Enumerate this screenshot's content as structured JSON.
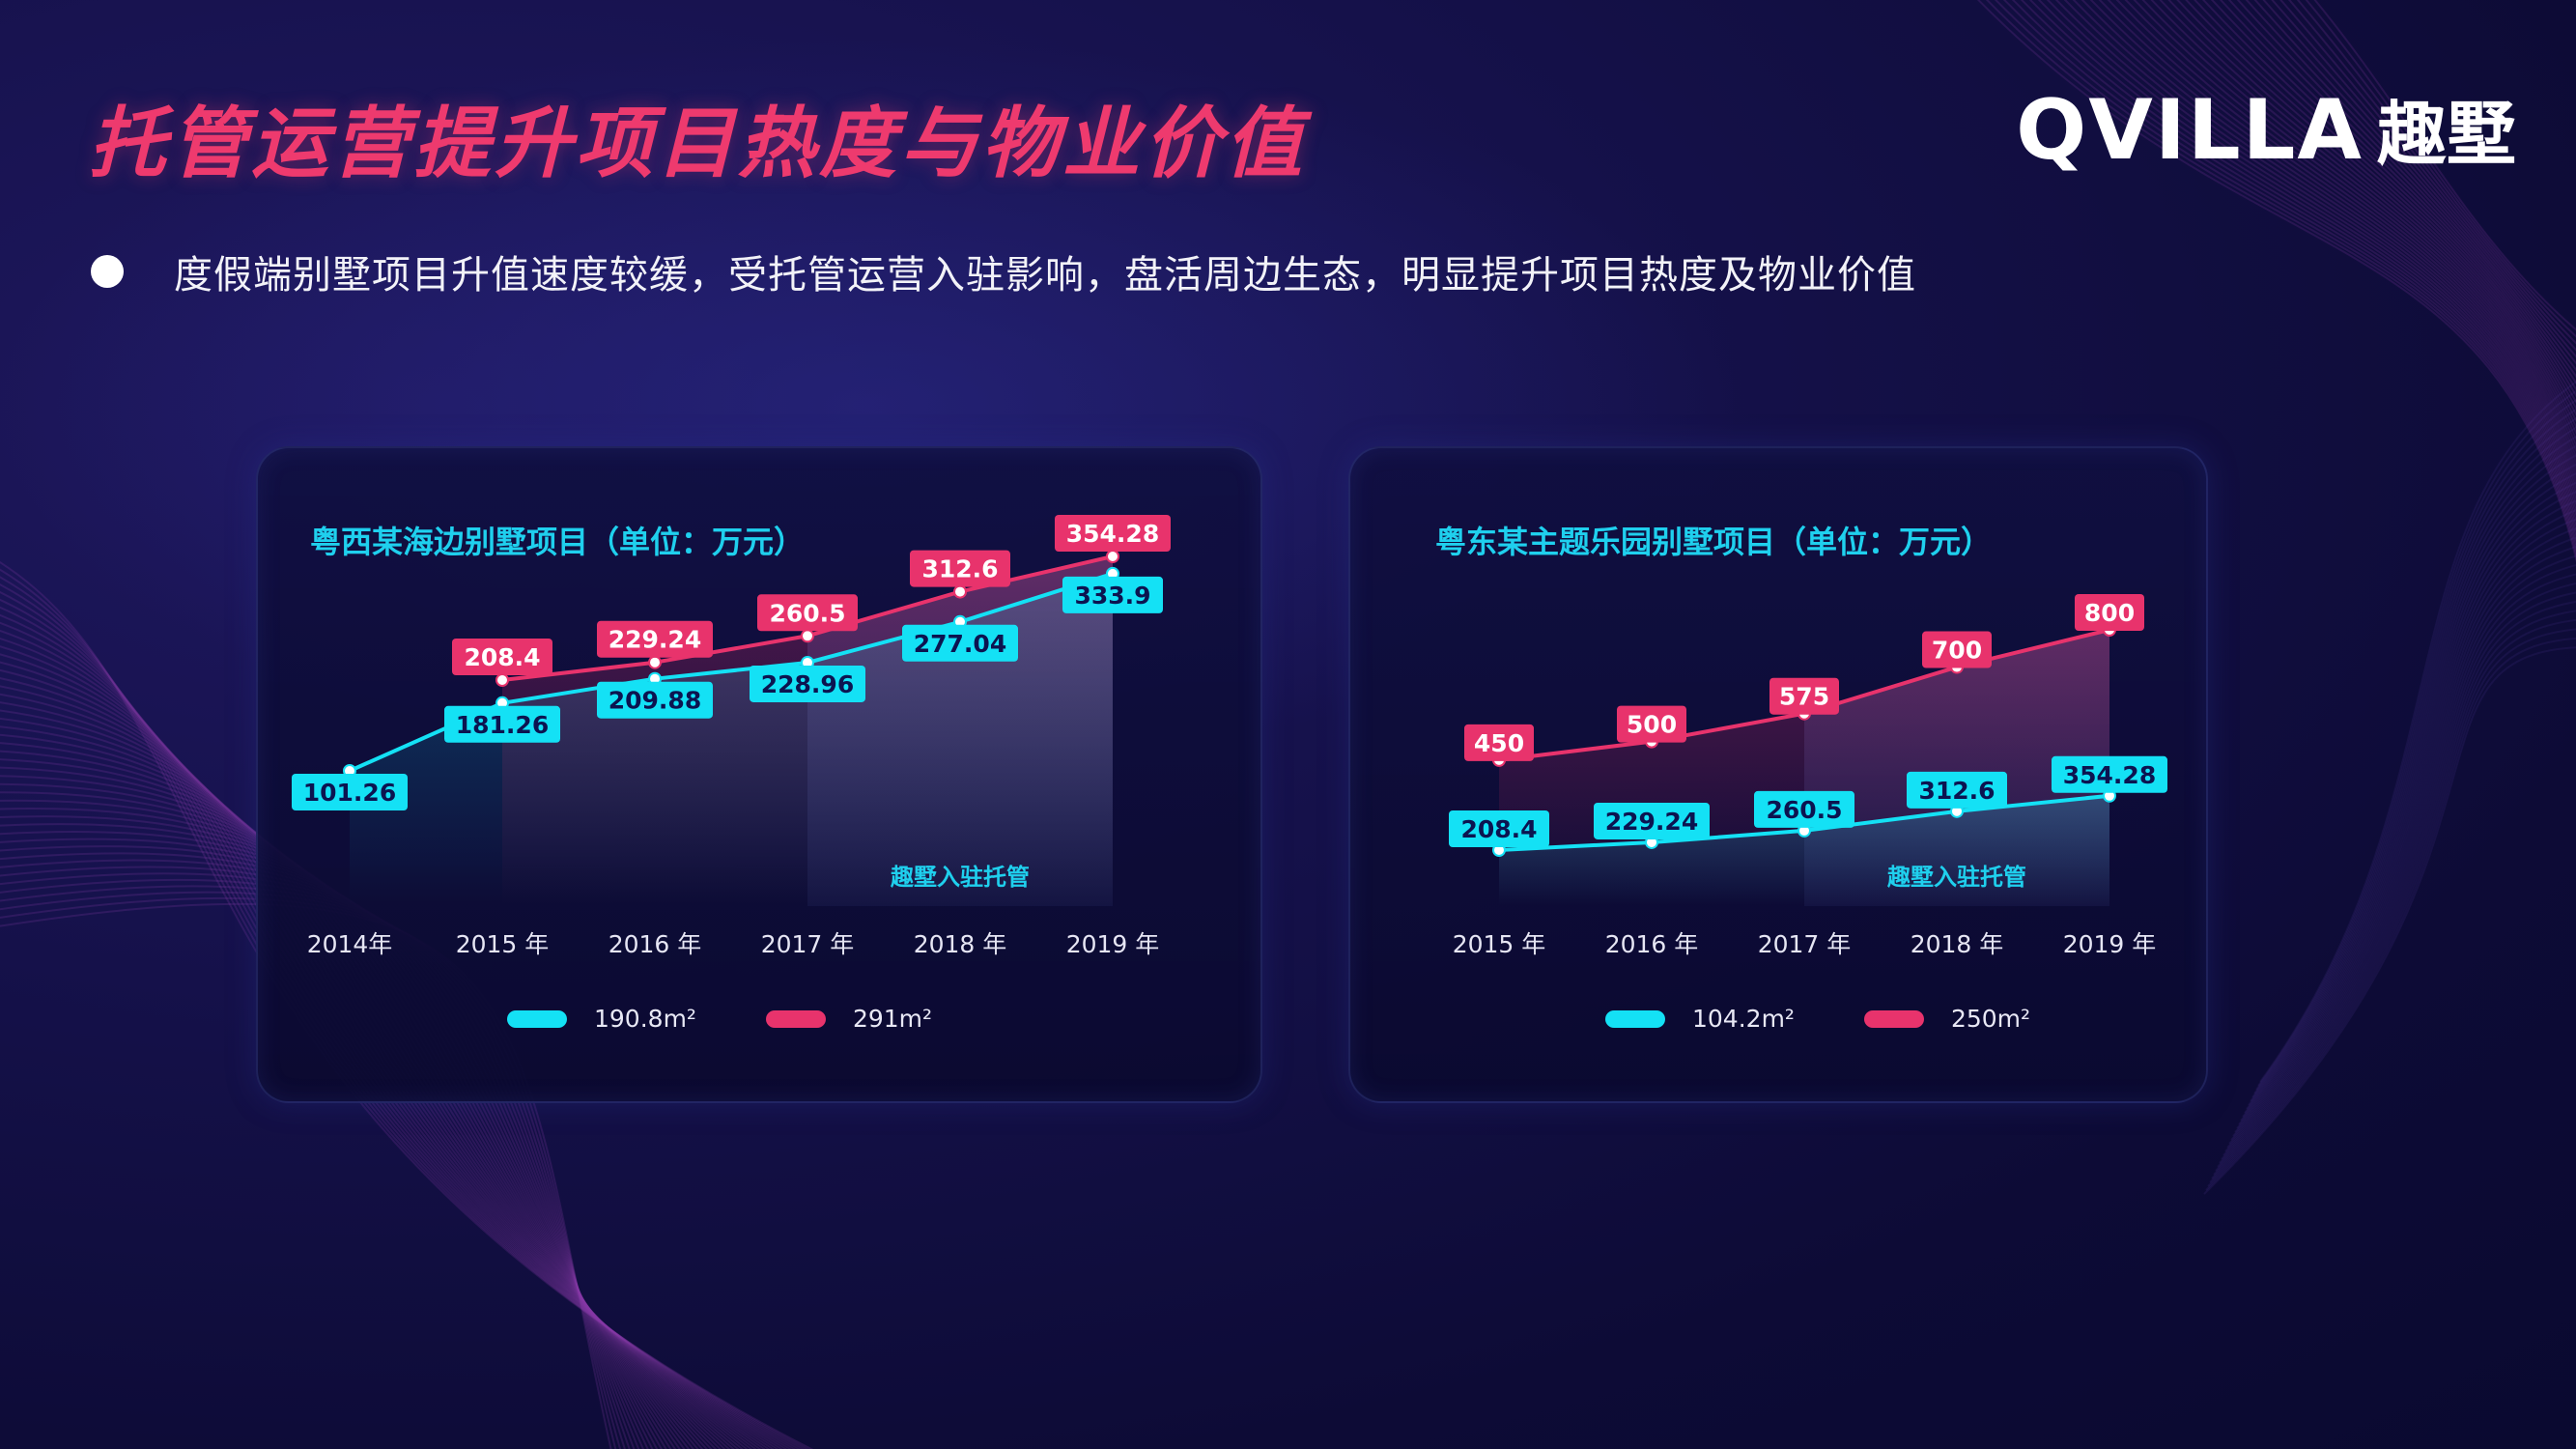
{
  "title": "托管运营提升项目热度与物业价值",
  "logo": {
    "word": "QVILLA",
    "cn": "趣墅"
  },
  "bullet": "度假端别墅项目升值速度较缓，受托管运营入驻影响，盘活周边生态，明显提升项目热度及物业价值",
  "colors": {
    "background": "#0d0b36",
    "accent_pink": "#e8336c",
    "accent_cyan": "#14e1f5",
    "title_pink": "#ee3a6e",
    "chart_title": "#1fd0ee"
  },
  "chart_data": [
    {
      "type": "line",
      "title": "粤西某海边别墅项目（单位：万元）",
      "categories": [
        "2014年",
        "2015 年",
        "2016 年",
        "2017 年",
        "2018 年",
        "2019 年"
      ],
      "series": [
        {
          "name": "190.8m²",
          "color": "#14e1f5",
          "values": [
            101.26,
            181.26,
            209.88,
            228.96,
            277.04,
            333.9
          ]
        },
        {
          "name": "291m²",
          "color": "#e8336c",
          "values": [
            null,
            208.4,
            229.24,
            260.5,
            312.6,
            354.28
          ]
        }
      ],
      "annotation": {
        "text": "趣墅入驻托管",
        "from_category": "2017 年"
      },
      "legend": "bottom-center",
      "grid": false
    },
    {
      "type": "line",
      "title": "粤东某主题乐园别墅项目（单位：万元）",
      "categories": [
        "2015 年",
        "2016 年",
        "2017 年",
        "2018 年",
        "2019 年"
      ],
      "series": [
        {
          "name": "104.2m²",
          "color": "#14e1f5",
          "values": [
            208.4,
            229.24,
            260.5,
            312.6,
            354.28
          ]
        },
        {
          "name": "250m²",
          "color": "#e8336c",
          "values": [
            450,
            500,
            575,
            700,
            800
          ]
        }
      ],
      "annotation": {
        "text": "趣墅入驻托管",
        "from_category": "2017 年"
      },
      "legend": "bottom-center",
      "grid": false
    }
  ]
}
